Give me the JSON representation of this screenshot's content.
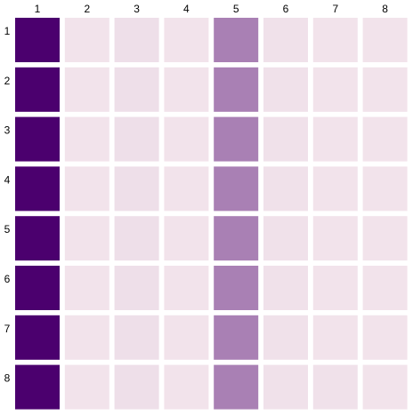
{
  "chart_data": {
    "type": "heatmap",
    "title": "",
    "xlabel": "",
    "ylabel": "",
    "x_categories": [
      "1",
      "2",
      "3",
      "4",
      "5",
      "6",
      "7",
      "8"
    ],
    "y_categories": [
      "1",
      "2",
      "3",
      "4",
      "5",
      "6",
      "7",
      "8"
    ],
    "values": [
      [
        1.0,
        0.02,
        0.04,
        0.02,
        0.45,
        0.03,
        0.02,
        0.02
      ],
      [
        1.0,
        0.02,
        0.04,
        0.02,
        0.45,
        0.03,
        0.02,
        0.02
      ],
      [
        1.0,
        0.02,
        0.04,
        0.02,
        0.45,
        0.03,
        0.02,
        0.02
      ],
      [
        1.0,
        0.02,
        0.04,
        0.02,
        0.45,
        0.03,
        0.02,
        0.02
      ],
      [
        1.0,
        0.02,
        0.04,
        0.02,
        0.45,
        0.03,
        0.02,
        0.02
      ],
      [
        1.0,
        0.02,
        0.04,
        0.02,
        0.45,
        0.03,
        0.02,
        0.02
      ],
      [
        1.0,
        0.02,
        0.04,
        0.02,
        0.45,
        0.03,
        0.02,
        0.02
      ],
      [
        1.0,
        0.02,
        0.04,
        0.02,
        0.45,
        0.03,
        0.03,
        0.02
      ]
    ],
    "value_range": [
      0,
      1
    ],
    "color_low": "#f5e8ee",
    "color_high": "#4b006e",
    "grid": false,
    "legend": "none"
  }
}
